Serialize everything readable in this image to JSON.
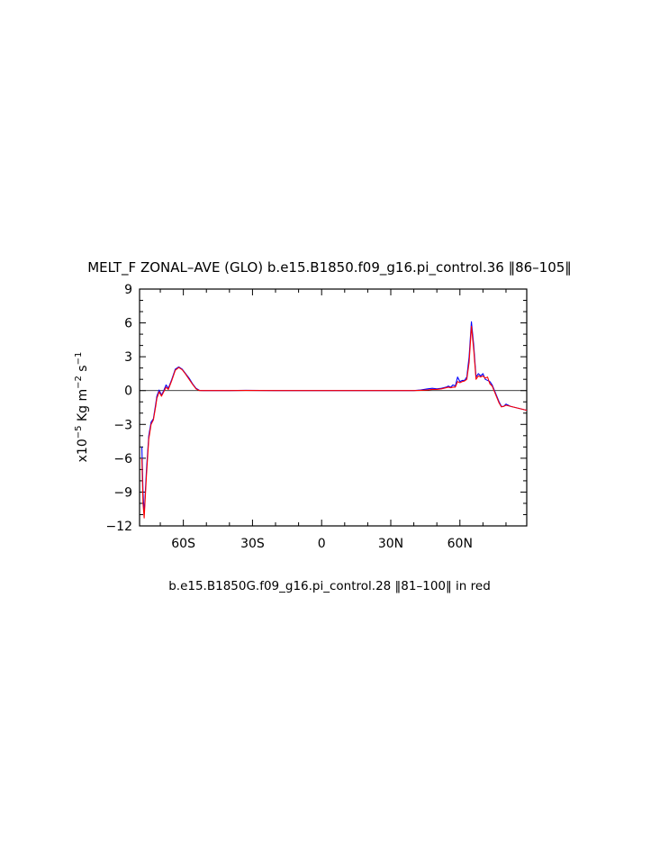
{
  "chart_data": {
    "type": "line",
    "title": "MELT_F ZONAL–AVE (GLO) b.e15.B1850.f09_g16.pi_control.36 ‖86–105‖",
    "footer": "b.e15.B1850G.f09_g16.pi_control.28 ‖81–100‖ in red",
    "ylabel": {
      "base": "x10",
      "exp1": "−5",
      "mid": " Kg m",
      "exp2": "−2",
      "mid2": " s",
      "exp3": "−1"
    },
    "xlim": [
      -79,
      89
    ],
    "ylim": [
      -12,
      9
    ],
    "x_ticks": [
      {
        "value": -60,
        "label": "60S"
      },
      {
        "value": -30,
        "label": "30S"
      },
      {
        "value": 0,
        "label": "0"
      },
      {
        "value": 30,
        "label": "30N"
      },
      {
        "value": 60,
        "label": "60N"
      }
    ],
    "y_ticks": [
      {
        "value": 9,
        "label": "9"
      },
      {
        "value": 6,
        "label": "6"
      },
      {
        "value": 3,
        "label": "3"
      },
      {
        "value": 0,
        "label": "0"
      },
      {
        "value": -3,
        "label": "−3"
      },
      {
        "value": -6,
        "label": "−6"
      },
      {
        "value": -9,
        "label": "−9"
      },
      {
        "value": -12,
        "label": "−12"
      }
    ],
    "zero_line": true,
    "series": [
      {
        "color": "#0000ff",
        "x": [
          -78,
          -77.5,
          -77,
          -76,
          -75,
          -74,
          -73,
          -72,
          -71.5,
          -70.5,
          -69.5,
          -68.5,
          -67.5,
          -66.5,
          -65,
          -63.5,
          -62,
          -60.5,
          -59,
          -57.5,
          -56,
          -54.5,
          -53,
          -51.5,
          -50,
          -40,
          -33,
          -20,
          0,
          20,
          30,
          40,
          43,
          46,
          48,
          50,
          52,
          54,
          55,
          56,
          57,
          58,
          59,
          60,
          61,
          62,
          63,
          64,
          65,
          66,
          67,
          68,
          69,
          70,
          71,
          72,
          73,
          74,
          75,
          76,
          77,
          78,
          79,
          80,
          81,
          82,
          83,
          84,
          85,
          86,
          87,
          88,
          89
        ],
        "y": [
          -5,
          -9,
          -11,
          -7,
          -4,
          -2.8,
          -2.5,
          -1.2,
          -0.5,
          0.05,
          -0.4,
          0,
          0.5,
          0.2,
          1,
          1.9,
          2.1,
          1.9,
          1.5,
          1.1,
          0.6,
          0.2,
          0.02,
          0,
          0,
          0,
          0.02,
          0,
          0,
          0,
          0,
          0,
          0.05,
          0.15,
          0.2,
          0.15,
          0.2,
          0.3,
          0.4,
          0.3,
          0.5,
          0.4,
          1.2,
          0.8,
          0.9,
          0.9,
          1.2,
          3,
          6.1,
          4,
          1.2,
          1.5,
          1.3,
          1.5,
          1,
          0.9,
          0.8,
          0.5,
          0,
          -0.5,
          -1,
          -1.4,
          -1.4,
          -1.2,
          -1.3,
          -1.4,
          -1.45,
          -1.5,
          -1.55,
          -1.6,
          -1.65,
          -1.7,
          -1.75
        ]
      },
      {
        "color": "#ff0000",
        "x": [
          -78,
          -77.5,
          -77,
          -76,
          -75,
          -74,
          -73,
          -72,
          -71.5,
          -70.5,
          -69.5,
          -68.5,
          -67.5,
          -66.5,
          -65,
          -63.5,
          -62,
          -60.5,
          -59,
          -57.5,
          -56,
          -54.5,
          -53,
          -51.5,
          -50,
          -40,
          -33,
          -20,
          0,
          20,
          30,
          40,
          43,
          46,
          48,
          50,
          52,
          54,
          55,
          56,
          57,
          58,
          59,
          60,
          61,
          62,
          63,
          64,
          65,
          66,
          67,
          68,
          69,
          70,
          71,
          72,
          73,
          74,
          75,
          76,
          77,
          78,
          79,
          80,
          81,
          82,
          83,
          84,
          85,
          86,
          87,
          88,
          89
        ],
        "y": [
          -6,
          -10,
          -11.3,
          -7.5,
          -4.3,
          -3,
          -2.6,
          -1.4,
          -0.7,
          -0.1,
          -0.5,
          -0.1,
          0.3,
          0.1,
          0.9,
          1.8,
          2.05,
          1.85,
          1.45,
          1,
          0.55,
          0.15,
          0,
          0,
          0,
          0,
          0.01,
          0,
          0,
          0,
          0,
          0,
          0.02,
          0.05,
          0.1,
          0.1,
          0.15,
          0.25,
          0.3,
          0.25,
          0.3,
          0.3,
          0.8,
          0.7,
          0.8,
          0.85,
          1,
          2.5,
          5.7,
          3.6,
          1,
          1.3,
          1.2,
          1.3,
          1.1,
          1.2,
          0.6,
          0.4,
          -0.1,
          -0.6,
          -1.1,
          -1.45,
          -1.4,
          -1.3,
          -1.35,
          -1.4,
          -1.45,
          -1.5,
          -1.55,
          -1.6,
          -1.65,
          -1.7,
          -1.75
        ]
      }
    ]
  }
}
